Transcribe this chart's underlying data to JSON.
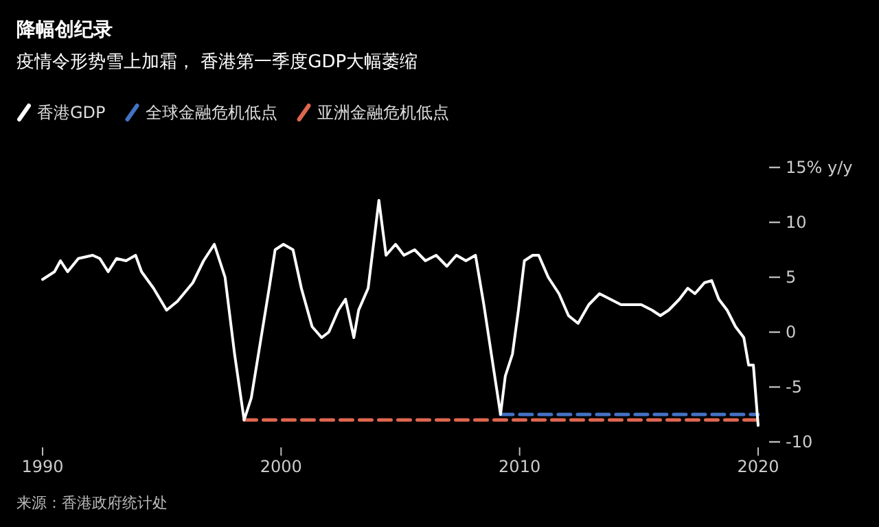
{
  "chart_data": {
    "type": "line",
    "title": "降幅创纪录",
    "subtitle": "疫情令形势雪上加霜， 香港第一季度GDP大幅萎缩",
    "x": [
      1990,
      1990.5,
      1990.75,
      1991.05,
      1991.5,
      1992.1,
      1992.4,
      1992.75,
      1993.1,
      1993.5,
      1993.9,
      1994.15,
      1994.65,
      1995.2,
      1995.65,
      1996.3,
      1996.75,
      1997.2,
      1997.65,
      1998.05,
      1998.45,
      1998.75,
      1999.2,
      1999.5,
      1999.75,
      2000.1,
      2000.5,
      2000.85,
      2001.3,
      2001.7,
      2002,
      2002.4,
      2002.7,
      2003.05,
      2003.25,
      2003.65,
      2004.1,
      2004.4,
      2004.8,
      2005.15,
      2005.6,
      2006.05,
      2006.5,
      2006.95,
      2007.35,
      2007.75,
      2008.15,
      2008.5,
      2008.85,
      2009.2,
      2009.4,
      2009.7,
      2009.95,
      2010.2,
      2010.55,
      2010.8,
      2011.2,
      2011.65,
      2012.05,
      2012.45,
      2012.9,
      2013.35,
      2013.8,
      2014.25,
      2014.7,
      2015.1,
      2015.55,
      2015.9,
      2016.25,
      2016.7,
      2017.05,
      2017.35,
      2017.75,
      2018.05,
      2018.35,
      2018.7,
      2019.05,
      2019.4,
      2019.6,
      2019.8,
      2020
    ],
    "series": [
      {
        "name": "香港GDP",
        "color": "#ffffff",
        "line_style": "solid",
        "values": [
          4.8,
          5.5,
          6.5,
          5.5,
          6.7,
          7,
          6.7,
          5.5,
          6.7,
          6.5,
          7,
          5.5,
          4,
          2,
          2.8,
          4.5,
          6.5,
          8,
          5,
          -2,
          -8,
          -6,
          0,
          4,
          7.5,
          8,
          7.5,
          4,
          0.5,
          -0.5,
          0,
          2,
          3,
          -0.5,
          2,
          4,
          12,
          7,
          8,
          7,
          7.5,
          6.5,
          7,
          6,
          7,
          6.5,
          7,
          2.5,
          -2.5,
          -7.5,
          -4,
          -2,
          2,
          6.5,
          7,
          7,
          5,
          3.5,
          1.5,
          0.8,
          2.5,
          3.5,
          3,
          2.5,
          2.5,
          2.5,
          2,
          1.5,
          2,
          3,
          4,
          3.5,
          4.5,
          4.7,
          3,
          2,
          0.5,
          -0.5,
          -3,
          -3,
          -8.5
        ]
      },
      {
        "name": "全球金融危机低点",
        "color": "#4472c4",
        "line_style": "dashed",
        "x": [
          2009.2,
          2020
        ],
        "values": [
          -7.5,
          -7.5
        ]
      },
      {
        "name": "亚洲金融危机低点",
        "color": "#e06650",
        "line_style": "dashed",
        "x": [
          1998.45,
          2020
        ],
        "values": [
          -8,
          -8
        ]
      }
    ],
    "xlim": [
      1990,
      2020
    ],
    "xticks": [
      1990,
      2000,
      2010,
      2020
    ],
    "ylim": [
      -10,
      15
    ],
    "yticks": [
      -10,
      -5,
      0,
      5,
      10,
      {
        "value": 15,
        "label": "15% y/y"
      }
    ],
    "legend": "top left",
    "grid": false,
    "marker": "none",
    "annotations": [
      "来源：香港政府统计处"
    ]
  }
}
